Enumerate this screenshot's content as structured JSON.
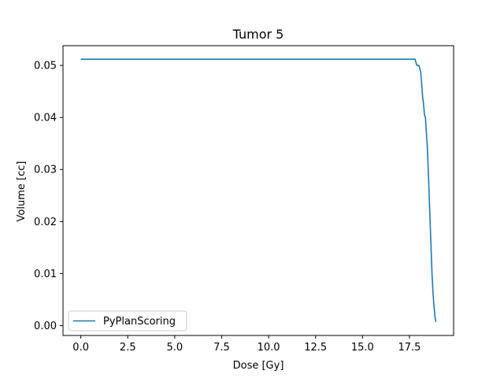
{
  "chart_data": {
    "type": "line",
    "title": "Tumor 5",
    "xlabel": "Dose [Gy]",
    "ylabel": "Volume [cc]",
    "xlim": [
      -0.95,
      19.85
    ],
    "ylim": [
      -0.0019,
      0.0538
    ],
    "xticks": [
      0.0,
      2.5,
      5.0,
      7.5,
      10.0,
      12.5,
      15.0,
      17.5
    ],
    "xtick_labels": [
      "0.0",
      "2.5",
      "5.0",
      "7.5",
      "10.0",
      "12.5",
      "15.0",
      "17.5"
    ],
    "yticks": [
      0.0,
      0.01,
      0.02,
      0.03,
      0.04,
      0.05
    ],
    "ytick_labels": [
      "0.00",
      "0.01",
      "0.02",
      "0.03",
      "0.04",
      "0.05"
    ],
    "grid": false,
    "legend": "lower-left",
    "series": [
      {
        "name": "PyPlanScoring",
        "color": "#1f77b4",
        "x": [
          0.0,
          17.8,
          17.85,
          17.9,
          18.0,
          18.05,
          18.1,
          18.15,
          18.2,
          18.25,
          18.3,
          18.35,
          18.4,
          18.45,
          18.5,
          18.55,
          18.6,
          18.65,
          18.7,
          18.75,
          18.8,
          18.85,
          18.9
        ],
        "y": [
          0.0512,
          0.0512,
          0.0505,
          0.05,
          0.05,
          0.0494,
          0.0487,
          0.0465,
          0.044,
          0.0425,
          0.0405,
          0.04,
          0.037,
          0.0345,
          0.03,
          0.025,
          0.02,
          0.015,
          0.01,
          0.0065,
          0.004,
          0.002,
          0.0007
        ]
      }
    ]
  }
}
